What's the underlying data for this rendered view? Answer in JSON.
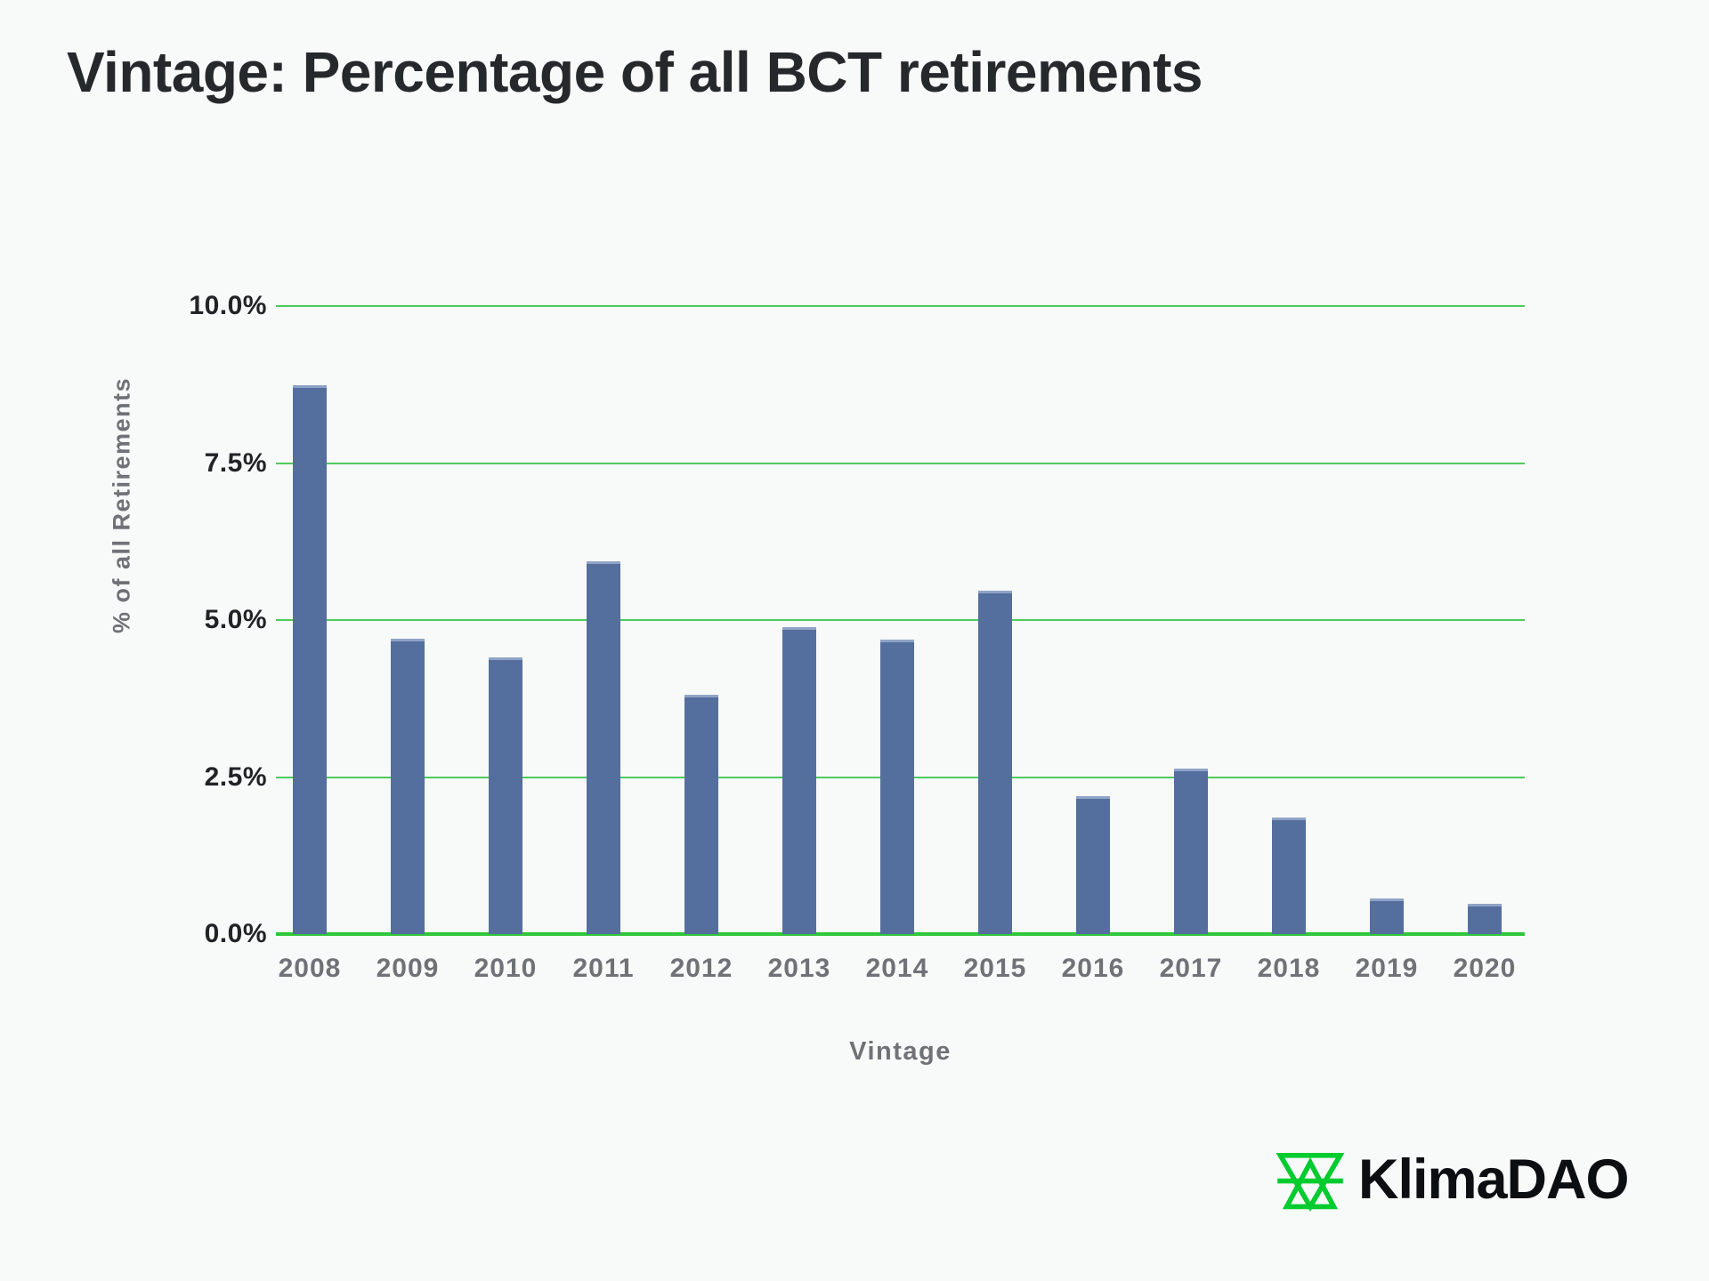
{
  "page": {
    "background_color": "#f8f9f9"
  },
  "chart_data": {
    "type": "bar",
    "title": "Vintage: Percentage of all BCT retirements",
    "xlabel": "Vintage",
    "ylabel": "% of all Retirements",
    "categories": [
      "2008",
      "2009",
      "2010",
      "2011",
      "2012",
      "2013",
      "2014",
      "2015",
      "2016",
      "2017",
      "2018",
      "2019",
      "2020"
    ],
    "values": [
      8.74,
      4.7,
      4.4,
      5.94,
      3.81,
      4.88,
      4.69,
      5.47,
      2.2,
      2.64,
      1.85,
      0.57,
      0.48
    ],
    "ylim": [
      0,
      10
    ],
    "yticks": {
      "values": [
        10,
        7.5,
        5,
        2.5,
        0
      ],
      "labels": [
        "10.0%",
        "7.5%",
        "5.0%",
        "2.5%",
        "0.0%"
      ]
    },
    "grid": {
      "horizontal": true,
      "color": "#50ca5e",
      "zero_line_color": "#2fc63a"
    },
    "legend": null,
    "bar_color": "#546f9e",
    "bar_top_edge_color": "#8fa4c6",
    "title_color": "#25292c",
    "tick_label_color": "#212427",
    "axis_label_color": "#6f7276"
  },
  "branding": {
    "name": "KlimaDAO",
    "logo_mark": "klima-triangles-icon",
    "logo_green": "#00cb2f",
    "wordmark_color": "#0c0f12"
  }
}
